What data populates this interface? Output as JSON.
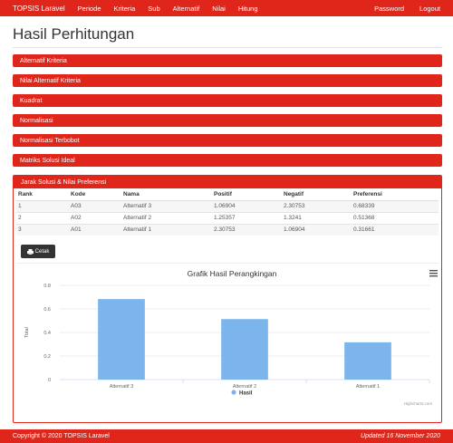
{
  "navbar": {
    "brand": "TOPSIS Laravel",
    "left_items": [
      "Periode",
      "Kriteria",
      "Sub",
      "Alternatif",
      "Nilai",
      "Hitung"
    ],
    "right_items": [
      "Password",
      "Logout"
    ]
  },
  "page": {
    "title": "Hasil Perhitungan"
  },
  "panels": [
    "Alternatif Kriteria",
    "Nilai Alternatif Kriteria",
    "Kuadrat",
    "Normalisasi",
    "Normalisasi Terbobot",
    "Matriks Solusi Ideal"
  ],
  "result": {
    "title": "Jarak Solusi & Nilai Preferensi",
    "columns": [
      "Rank",
      "Kode",
      "Nama",
      "Positif",
      "Negatif",
      "Preferensi"
    ],
    "rows": [
      [
        "1",
        "A03",
        "Alternatif 3",
        "1.06904",
        "2.30753",
        "0.68339"
      ],
      [
        "2",
        "A02",
        "Alternatif 2",
        "1.25357",
        "1.3241",
        "0.51368"
      ],
      [
        "3",
        "A01",
        "Alternatif 1",
        "2.30753",
        "1.06904",
        "0.31661"
      ]
    ],
    "print_button": "Cetak",
    "print_icon": "printer-icon"
  },
  "chart_data": {
    "type": "bar",
    "title": "Grafik Hasil Perangkingan",
    "categories": [
      "Alternatif 3",
      "Alternatif 2",
      "Alternatif 1"
    ],
    "series": [
      {
        "name": "Hasil",
        "values": [
          0.68339,
          0.51368,
          0.31661
        ]
      }
    ],
    "ylabel": "Total",
    "xlabel": "",
    "ylim": [
      0,
      0.8
    ],
    "yticks": [
      "0",
      "0.2",
      "0.4",
      "0.6",
      "0.8"
    ],
    "grid": true,
    "legend": "bottom-center",
    "credit": "Highcharts.com",
    "bar_color": "#7cb5ec",
    "menu_icon": "hamburger-menu-icon"
  },
  "footer": {
    "copyright": "Copyright © 2020 TOPSIS Laravel",
    "updated": "Updated 16 November 2020"
  }
}
